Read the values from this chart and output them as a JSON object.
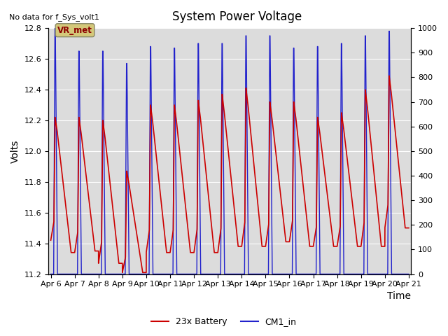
{
  "title": "System Power Voltage",
  "no_data_label": "No data for f_Sys_volt1",
  "xlabel": "Time",
  "ylabel": "Volts",
  "ylim_left": [
    11.2,
    12.8
  ],
  "ylim_right": [
    0,
    1000
  ],
  "yticks_left": [
    11.2,
    11.4,
    11.6,
    11.8,
    12.0,
    12.2,
    12.4,
    12.6,
    12.8
  ],
  "yticks_right": [
    0,
    100,
    200,
    300,
    400,
    500,
    600,
    700,
    800,
    900,
    1000
  ],
  "xtick_labels": [
    "Apr 6",
    "Apr 7",
    "Apr 8",
    "Apr 9",
    "Apr 10",
    "Apr 11",
    "Apr 12",
    "Apr 13",
    "Apr 14",
    "Apr 15",
    "Apr 16",
    "Apr 17",
    "Apr 18",
    "Apr 19",
    "Apr 20",
    "Apr 21"
  ],
  "legend_labels": [
    "23x Battery",
    "CM1_in"
  ],
  "vr_met_box_color": "#d4c87a",
  "background_color": "#dcdcdc",
  "red_color": "#cc0000",
  "blue_color": "#2222cc",
  "n_days": 15,
  "day_profiles": [
    [
      11.42,
      12.22,
      11.34,
      0.62,
      0.8
    ],
    [
      11.34,
      12.22,
      11.35,
      0.55,
      0.75
    ],
    [
      11.27,
      12.2,
      11.27,
      0.5,
      0.72
    ],
    [
      11.21,
      11.87,
      11.21,
      0.45,
      0.6
    ],
    [
      11.34,
      12.3,
      11.34,
      0.5,
      0.75
    ],
    [
      11.34,
      12.3,
      11.34,
      0.5,
      0.75
    ],
    [
      11.34,
      12.33,
      11.34,
      0.5,
      0.75
    ],
    [
      11.34,
      12.37,
      11.38,
      0.5,
      0.75
    ],
    [
      11.38,
      12.41,
      11.38,
      0.5,
      0.75
    ],
    [
      11.38,
      12.32,
      11.41,
      0.5,
      0.75
    ],
    [
      11.41,
      12.32,
      11.38,
      0.5,
      0.75
    ],
    [
      11.38,
      12.22,
      11.38,
      0.5,
      0.75
    ],
    [
      11.38,
      12.25,
      11.38,
      0.5,
      0.75
    ],
    [
      11.38,
      12.4,
      11.38,
      0.5,
      0.75
    ],
    [
      11.5,
      12.49,
      11.5,
      0.5,
      0.75
    ]
  ],
  "cm1_peaks": [
    12.8,
    12.65,
    12.65,
    12.57,
    12.68,
    12.67,
    12.7,
    12.7,
    12.75,
    12.75,
    12.67,
    12.68,
    12.7,
    12.75,
    12.78
  ],
  "spike_positions": [
    0.18,
    0.18,
    0.18,
    0.18,
    0.18,
    0.18,
    0.18,
    0.18,
    0.18,
    0.18,
    0.18,
    0.18,
    0.18,
    0.18,
    0.18
  ]
}
